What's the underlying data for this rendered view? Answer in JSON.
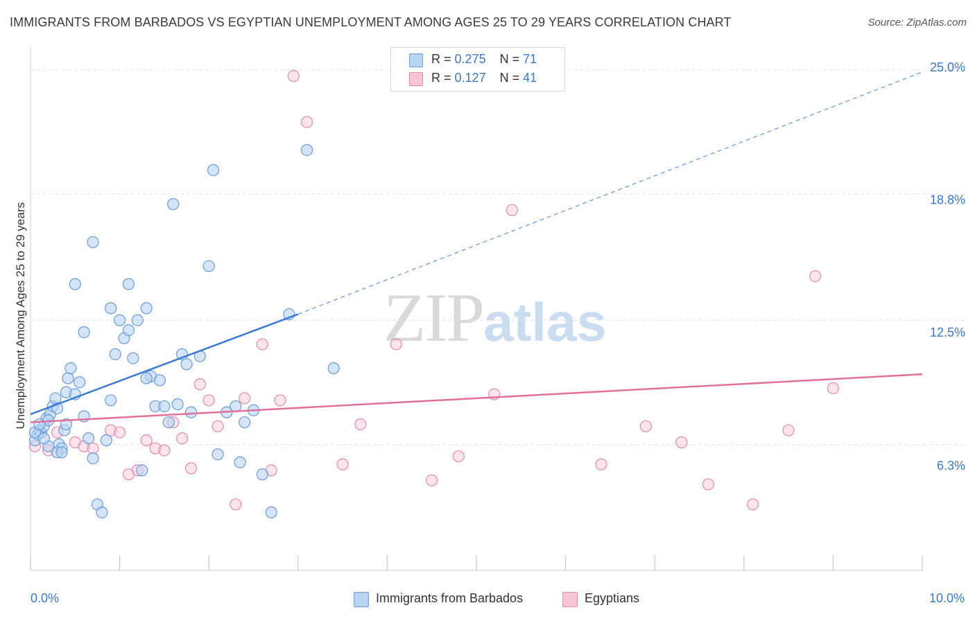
{
  "title": "IMMIGRANTS FROM BARBADOS VS EGYPTIAN UNEMPLOYMENT AMONG AGES 25 TO 29 YEARS CORRELATION CHART",
  "source": "Source: ZipAtlas.com",
  "watermark": {
    "zip": "ZIP",
    "atlas": "atlas"
  },
  "legend": {
    "series1": {
      "r_label": "R =",
      "r_value": "0.275",
      "n_label": "N =",
      "n_value": "71"
    },
    "series2": {
      "r_label": "R =",
      "r_value": "0.127",
      "n_label": "N =",
      "n_value": "41"
    }
  },
  "colors": {
    "blue": "#3a7ad0",
    "blue_fill": "#b9d3f2",
    "pink": "#e0709a",
    "pink_fill": "#f7c4d4",
    "tick_text": "#3b78c3",
    "grid": "#e0e0e0"
  },
  "chart_data": {
    "type": "scatter",
    "title": "IMMIGRANTS FROM BARBADOS VS EGYPTIAN UNEMPLOYMENT AMONG AGES 25 TO 29 YEARS CORRELATION CHART",
    "xlabel": "",
    "ylabel": "Unemployment Among Ages 25 to 29 years",
    "xlim": [
      0,
      10
    ],
    "ylim": [
      0,
      26
    ],
    "x_tick_labels": [
      "0.0%",
      "10.0%"
    ],
    "y_ticks": [
      6.3,
      12.5,
      18.8,
      25.0
    ],
    "y_tick_labels": [
      "6.3%",
      "12.5%",
      "18.8%",
      "25.0%"
    ],
    "grid": true,
    "legend_position": "top-center",
    "series": [
      {
        "name": "Immigrants from Barbados",
        "color": "#3a7ad0",
        "trend": {
          "x": [
            0.0,
            3.0
          ],
          "y": [
            7.8,
            12.8
          ],
          "extended_to": [
            10.0,
            24.9
          ]
        },
        "points": [
          [
            0.05,
            6.5
          ],
          [
            0.08,
            6.8
          ],
          [
            0.1,
            7.0
          ],
          [
            0.12,
            6.9
          ],
          [
            0.15,
            7.2
          ],
          [
            0.18,
            7.6
          ],
          [
            0.2,
            6.2
          ],
          [
            0.22,
            7.8
          ],
          [
            0.25,
            8.2
          ],
          [
            0.28,
            8.6
          ],
          [
            0.3,
            8.1
          ],
          [
            0.32,
            6.3
          ],
          [
            0.35,
            6.1
          ],
          [
            0.38,
            7.0
          ],
          [
            0.4,
            8.9
          ],
          [
            0.42,
            9.6
          ],
          [
            0.45,
            10.1
          ],
          [
            0.5,
            8.8
          ],
          [
            0.55,
            9.4
          ],
          [
            0.6,
            7.7
          ],
          [
            0.65,
            6.6
          ],
          [
            0.7,
            5.6
          ],
          [
            0.75,
            3.3
          ],
          [
            0.8,
            2.9
          ],
          [
            0.85,
            6.5
          ],
          [
            0.9,
            8.5
          ],
          [
            0.95,
            10.8
          ],
          [
            1.0,
            12.5
          ],
          [
            1.05,
            11.6
          ],
          [
            1.1,
            12.0
          ],
          [
            1.15,
            10.6
          ],
          [
            1.2,
            12.5
          ],
          [
            1.25,
            5.0
          ],
          [
            1.3,
            13.1
          ],
          [
            1.35,
            9.7
          ],
          [
            1.4,
            8.2
          ],
          [
            1.45,
            9.5
          ],
          [
            1.5,
            8.2
          ],
          [
            1.55,
            7.4
          ],
          [
            1.6,
            18.3
          ],
          [
            1.65,
            8.3
          ],
          [
            1.7,
            10.8
          ],
          [
            1.75,
            10.3
          ],
          [
            1.8,
            7.9
          ],
          [
            1.9,
            10.7
          ],
          [
            2.0,
            15.2
          ],
          [
            2.05,
            20.0
          ],
          [
            2.1,
            5.8
          ],
          [
            2.2,
            7.9
          ],
          [
            2.3,
            8.2
          ],
          [
            2.35,
            5.4
          ],
          [
            2.4,
            7.4
          ],
          [
            2.5,
            8.0
          ],
          [
            2.6,
            4.8
          ],
          [
            2.7,
            2.9
          ],
          [
            2.9,
            12.8
          ],
          [
            3.1,
            21.0
          ],
          [
            3.4,
            10.1
          ],
          [
            0.15,
            6.6
          ],
          [
            0.3,
            5.9
          ],
          [
            0.5,
            14.3
          ],
          [
            0.6,
            11.9
          ],
          [
            0.7,
            16.4
          ],
          [
            0.2,
            7.5
          ],
          [
            0.4,
            7.3
          ],
          [
            0.9,
            13.1
          ],
          [
            1.1,
            14.3
          ],
          [
            1.3,
            9.6
          ],
          [
            0.05,
            6.9
          ],
          [
            0.1,
            7.3
          ],
          [
            0.35,
            5.9
          ]
        ]
      },
      {
        "name": "Egyptians",
        "color": "#e0709a",
        "trend": {
          "x": [
            0.0,
            10.0
          ],
          "y": [
            7.4,
            9.8
          ]
        },
        "points": [
          [
            0.05,
            6.2
          ],
          [
            0.2,
            6.0
          ],
          [
            0.3,
            6.9
          ],
          [
            0.5,
            6.4
          ],
          [
            0.6,
            6.2
          ],
          [
            0.7,
            6.1
          ],
          [
            0.9,
            7.0
          ],
          [
            1.0,
            6.9
          ],
          [
            1.1,
            4.8
          ],
          [
            1.2,
            5.0
          ],
          [
            1.3,
            6.5
          ],
          [
            1.4,
            6.1
          ],
          [
            1.5,
            6.0
          ],
          [
            1.6,
            7.4
          ],
          [
            1.7,
            6.6
          ],
          [
            1.8,
            5.1
          ],
          [
            1.9,
            9.3
          ],
          [
            2.0,
            8.5
          ],
          [
            2.1,
            7.2
          ],
          [
            2.3,
            3.3
          ],
          [
            2.4,
            8.6
          ],
          [
            2.6,
            11.3
          ],
          [
            2.7,
            5.0
          ],
          [
            2.8,
            8.5
          ],
          [
            2.95,
            24.7
          ],
          [
            3.1,
            22.4
          ],
          [
            3.5,
            5.3
          ],
          [
            3.7,
            7.3
          ],
          [
            4.1,
            11.3
          ],
          [
            4.5,
            4.5
          ],
          [
            4.8,
            5.7
          ],
          [
            5.2,
            8.8
          ],
          [
            5.4,
            18.0
          ],
          [
            6.4,
            5.3
          ],
          [
            6.9,
            7.2
          ],
          [
            7.3,
            6.4
          ],
          [
            7.6,
            4.3
          ],
          [
            8.1,
            3.3
          ],
          [
            8.5,
            7.0
          ],
          [
            8.8,
            14.7
          ],
          [
            9.0,
            9.1
          ]
        ]
      }
    ]
  }
}
